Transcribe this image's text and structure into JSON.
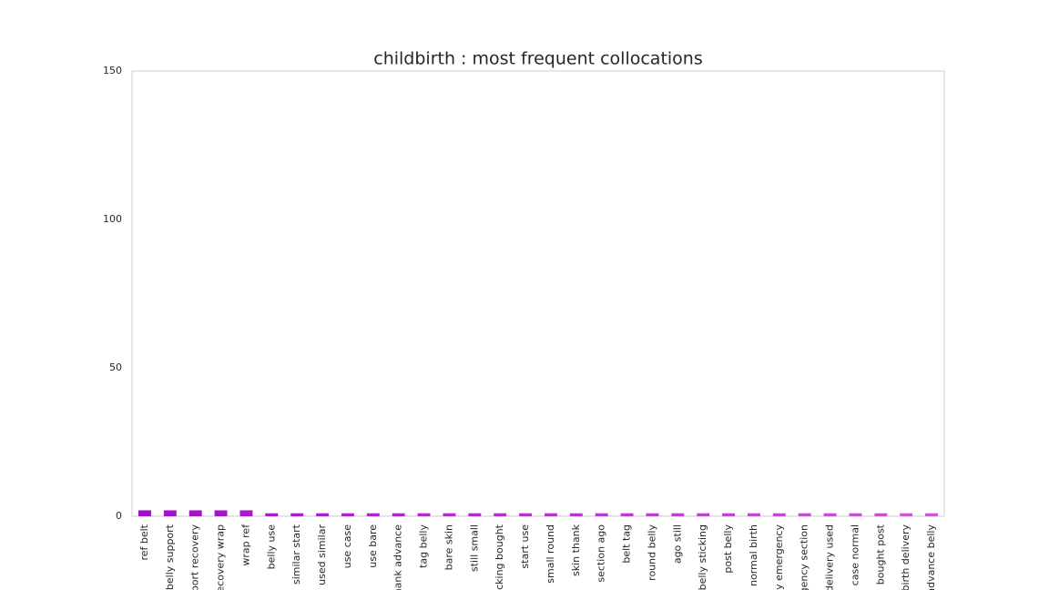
{
  "chart_data": {
    "type": "bar",
    "title": "childbirth : most frequent collocations",
    "categories": [
      "ref belt",
      "belly support",
      "pport recovery",
      "recovery wrap",
      "wrap ref",
      "belly use",
      "similar start",
      "used similar",
      "use case",
      "use bare",
      "thank advance",
      "tag belly",
      "bare skin",
      "still small",
      "sticking bought",
      "start use",
      "small round",
      "skin thank",
      "section ago",
      "belt tag",
      "round belly",
      "ago still",
      "belly sticking",
      "post belly",
      "normal birth",
      "ely emergency",
      "rgency section",
      "delivery used",
      "case normal",
      "bought post",
      "birth delivery",
      "advance belly"
    ],
    "values": [
      2,
      2,
      2,
      2,
      2,
      1,
      1,
      1,
      1,
      1,
      1,
      1,
      1,
      1,
      1,
      1,
      1,
      1,
      1,
      1,
      1,
      1,
      1,
      1,
      1,
      1,
      1,
      1,
      1,
      1,
      1,
      1
    ],
    "colors": [
      "#a010c8",
      "#a112c8",
      "#a315c9",
      "#a417c9",
      "#a51ac9",
      "#a61cca",
      "#a81eca",
      "#a921ca",
      "#aa23cb",
      "#ac26cb",
      "#ad28cb",
      "#ae2acc",
      "#af2dcc",
      "#b12fcc",
      "#b231cc",
      "#b334cd",
      "#b536cd",
      "#b639cd",
      "#b73bce",
      "#b93dce",
      "#ba40ce",
      "#bb42cf",
      "#bc45cf",
      "#be47cf",
      "#bf49d0",
      "#c04cd0",
      "#c24ed0",
      "#c351d1",
      "#c453d1",
      "#c555d1",
      "#c758d2",
      "#c85ad2"
    ],
    "ylim": [
      0,
      150
    ],
    "yticks": [
      0,
      50,
      100,
      150
    ],
    "grid": false
  }
}
